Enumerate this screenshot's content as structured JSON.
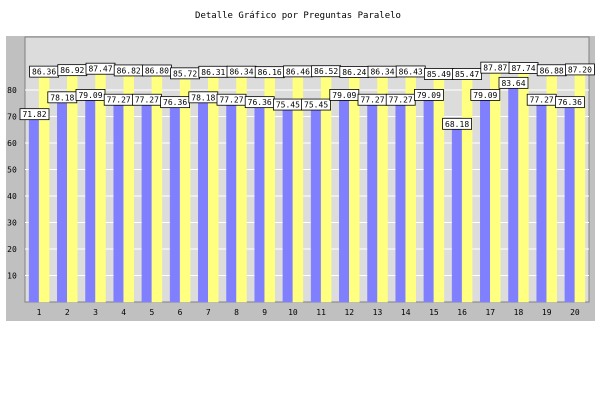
{
  "chart_data": {
    "type": "bar",
    "title": "Detalle Gráfico por Preguntas Paralelo",
    "xlabel": "",
    "ylabel": "",
    "ylim": [
      0,
      90
    ],
    "yticks": [
      10,
      20,
      30,
      40,
      50,
      60,
      70,
      80
    ],
    "categories": [
      "1",
      "2",
      "3",
      "4",
      "5",
      "6",
      "7",
      "8",
      "9",
      "10",
      "11",
      "12",
      "13",
      "14",
      "15",
      "16",
      "17",
      "18",
      "19",
      "20"
    ],
    "grid": true,
    "legend": "none",
    "series": [
      {
        "values": [
          71.82,
          78.18,
          79.09,
          77.27,
          77.27,
          76.36,
          78.18,
          77.27,
          76.36,
          75.45,
          75.45,
          79.09,
          77.27,
          77.27,
          79.09,
          68.18,
          79.09,
          83.64,
          77.27,
          76.36
        ],
        "color": "#8080ff"
      },
      {
        "values": [
          86.36,
          86.92,
          87.47,
          86.82,
          86.8,
          85.72,
          86.31,
          86.34,
          86.16,
          86.46,
          86.52,
          86.24,
          86.34,
          86.43,
          85.49,
          85.47,
          87.87,
          87.74,
          86.88,
          87.2
        ],
        "color": "#ffff80"
      }
    ],
    "colors": {
      "background": "#ffffff",
      "plot_frame": "#c0c0c0",
      "plot_area": "#dcdcdc",
      "gridline": "#ffffff",
      "label_box": "#ffffff",
      "text": "#000000"
    }
  }
}
